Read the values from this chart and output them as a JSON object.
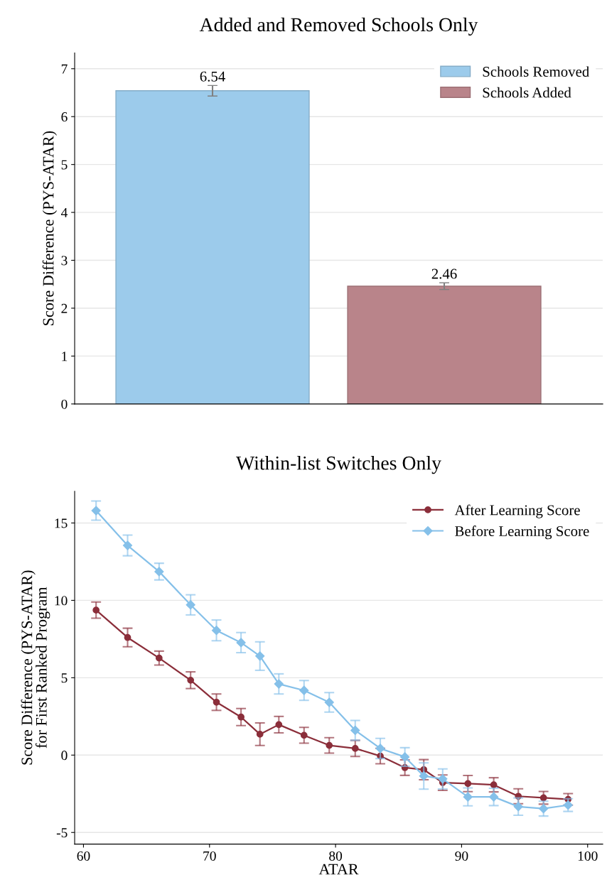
{
  "chart_data": [
    {
      "type": "bar",
      "title": "Added and Removed Schools Only",
      "ylabel": "Score Difference (PYS-ATAR)",
      "categories": [
        null,
        null
      ],
      "series": [
        {
          "name": "Schools Removed",
          "color": "#9ccbeb",
          "values": [
            6.54,
            null
          ],
          "errors": [
            0.11,
            null
          ]
        },
        {
          "name": "Schools Added",
          "color": "#b9848a",
          "values": [
            null,
            2.46
          ],
          "errors": [
            null,
            0.07
          ]
        }
      ],
      "ylim": [
        0,
        7.33
      ],
      "yticks": [
        0,
        1,
        2,
        3,
        4,
        5,
        6,
        7
      ],
      "grid": "y",
      "legend": "top right",
      "data_labels": true
    },
    {
      "type": "line",
      "title": "Within-list Switches Only",
      "xlabel": "ATAR",
      "ylabel": "Score Difference (PYS-ATAR)\nfor First Ranked Program",
      "series": [
        {
          "name": "After Learning Score",
          "color": "#8b2e3a",
          "marker": "circle",
          "x": [
            61.0,
            63.5,
            66.0,
            68.5,
            70.55,
            72.5,
            74.0,
            75.5,
            77.5,
            79.5,
            81.56,
            83.55,
            85.5,
            87.0,
            88.5,
            90.5,
            92.55,
            94.5,
            96.5,
            98.45
          ],
          "values": [
            9.37,
            7.6,
            6.27,
            4.84,
            3.42,
            2.46,
            1.35,
            1.97,
            1.28,
            0.63,
            0.43,
            -0.06,
            -0.81,
            -0.94,
            -1.78,
            -1.84,
            -1.92,
            -2.66,
            -2.76,
            -2.86
          ],
          "errors": [
            0.52,
            0.6,
            0.45,
            0.54,
            0.53,
            0.55,
            0.73,
            0.53,
            0.51,
            0.5,
            0.52,
            0.5,
            0.5,
            0.65,
            0.5,
            0.52,
            0.46,
            0.48,
            0.41,
            0.37
          ]
        },
        {
          "name": "Before Learning Score",
          "color": "#85c0e9",
          "marker": "diamond",
          "x": [
            61.0,
            63.5,
            66.0,
            68.5,
            70.55,
            72.5,
            74.0,
            75.5,
            77.5,
            79.5,
            81.56,
            83.55,
            85.5,
            87.0,
            88.5,
            90.5,
            92.55,
            94.5,
            96.5,
            98.45
          ],
          "values": [
            15.8,
            13.55,
            11.86,
            9.71,
            8.06,
            7.27,
            6.4,
            4.6,
            4.18,
            3.41,
            1.6,
            0.43,
            -0.12,
            -1.35,
            -1.54,
            -2.7,
            -2.7,
            -3.33,
            -3.46,
            -3.23
          ],
          "errors": [
            0.62,
            0.67,
            0.54,
            0.65,
            0.67,
            0.65,
            0.92,
            0.65,
            0.64,
            0.63,
            0.64,
            0.65,
            0.6,
            0.85,
            0.65,
            0.58,
            0.56,
            0.56,
            0.48,
            0.41
          ]
        }
      ],
      "xlim": [
        59.3,
        101.2
      ],
      "xticks": [
        60,
        70,
        80,
        90,
        100
      ],
      "ylim": [
        -5.75,
        17.05
      ],
      "yticks": [
        {
          "value": -5,
          "label": "-5"
        },
        0,
        5,
        10,
        15
      ],
      "grid": "y",
      "legend": "top right"
    }
  ]
}
